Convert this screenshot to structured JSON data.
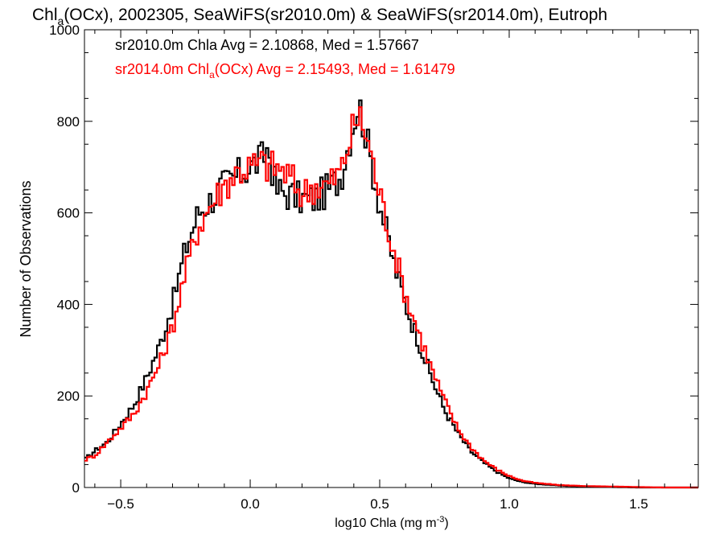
{
  "chart_data": {
    "type": "line",
    "title": {
      "pre": "Chl",
      "sub": "a",
      "post": "(OCx), 2002305, SeaWiFS(sr2010.0m) & SeaWiFS(sr2014.0m), Eutroph"
    },
    "xlabel": {
      "main": "log10 Chla (mg m",
      "sup": "-3",
      "end": ")"
    },
    "ylabel": "Number of Observations",
    "xlim": [
      -0.64,
      1.73
    ],
    "ylim": [
      0,
      1000
    ],
    "xticks": [
      -0.5,
      0.0,
      0.5,
      1.0,
      1.5
    ],
    "xtick_labels": [
      "−0.5",
      "0.0",
      "0.5",
      "1.0",
      "1.5"
    ],
    "yticks": [
      0,
      200,
      400,
      600,
      800,
      1000
    ],
    "ytick_labels": [
      "0",
      "200",
      "400",
      "600",
      "800",
      "1000"
    ],
    "grid": false,
    "legend_placement": "top-left",
    "annotations": [
      {
        "text": "sr2010.0m Chla Avg = 2.10868, Med = 1.57667",
        "color": "#000000"
      },
      {
        "pre": "sr2014.0m Chl",
        "sub": "a",
        "post": "(OCx) Avg = 2.15493, Med = 1.61479",
        "color": "#ff0000"
      }
    ],
    "series": [
      {
        "color": "#000000",
        "style": "step",
        "x": [
          -0.64,
          -0.6,
          -0.55,
          -0.5,
          -0.45,
          -0.4,
          -0.35,
          -0.3,
          -0.25,
          -0.2,
          -0.15,
          -0.1,
          -0.05,
          0.0,
          0.05,
          0.07,
          0.1,
          0.15,
          0.2,
          0.25,
          0.3,
          0.35,
          0.4,
          0.42,
          0.45,
          0.5,
          0.55,
          0.6,
          0.65,
          0.7,
          0.75,
          0.8,
          0.85,
          0.9,
          0.95,
          1.0,
          1.05,
          1.1,
          1.2,
          1.3,
          1.4,
          1.5,
          1.6,
          1.73
        ],
        "y": [
          60,
          80,
          100,
          140,
          180,
          240,
          310,
          400,
          520,
          600,
          630,
          660,
          680,
          700,
          720,
          745,
          650,
          640,
          630,
          630,
          650,
          680,
          800,
          840,
          760,
          620,
          500,
          400,
          320,
          240,
          170,
          120,
          80,
          55,
          35,
          20,
          12,
          8,
          4,
          2,
          1,
          0,
          0,
          0
        ]
      },
      {
        "color": "#ff0000",
        "style": "step",
        "x": [
          -0.64,
          -0.6,
          -0.55,
          -0.5,
          -0.45,
          -0.4,
          -0.35,
          -0.3,
          -0.25,
          -0.2,
          -0.15,
          -0.1,
          -0.05,
          0.0,
          0.05,
          0.07,
          0.1,
          0.15,
          0.2,
          0.25,
          0.3,
          0.35,
          0.4,
          0.42,
          0.45,
          0.5,
          0.55,
          0.6,
          0.65,
          0.7,
          0.75,
          0.8,
          0.85,
          0.9,
          0.95,
          1.0,
          1.05,
          1.1,
          1.2,
          1.3,
          1.4,
          1.5,
          1.6,
          1.73
        ],
        "y": [
          60,
          70,
          100,
          130,
          160,
          210,
          270,
          350,
          470,
          570,
          620,
          660,
          690,
          700,
          710,
          700,
          700,
          680,
          640,
          660,
          660,
          690,
          790,
          810,
          770,
          640,
          530,
          420,
          340,
          260,
          190,
          130,
          90,
          60,
          40,
          25,
          15,
          10,
          5,
          3,
          2,
          1,
          0,
          0
        ]
      }
    ]
  }
}
